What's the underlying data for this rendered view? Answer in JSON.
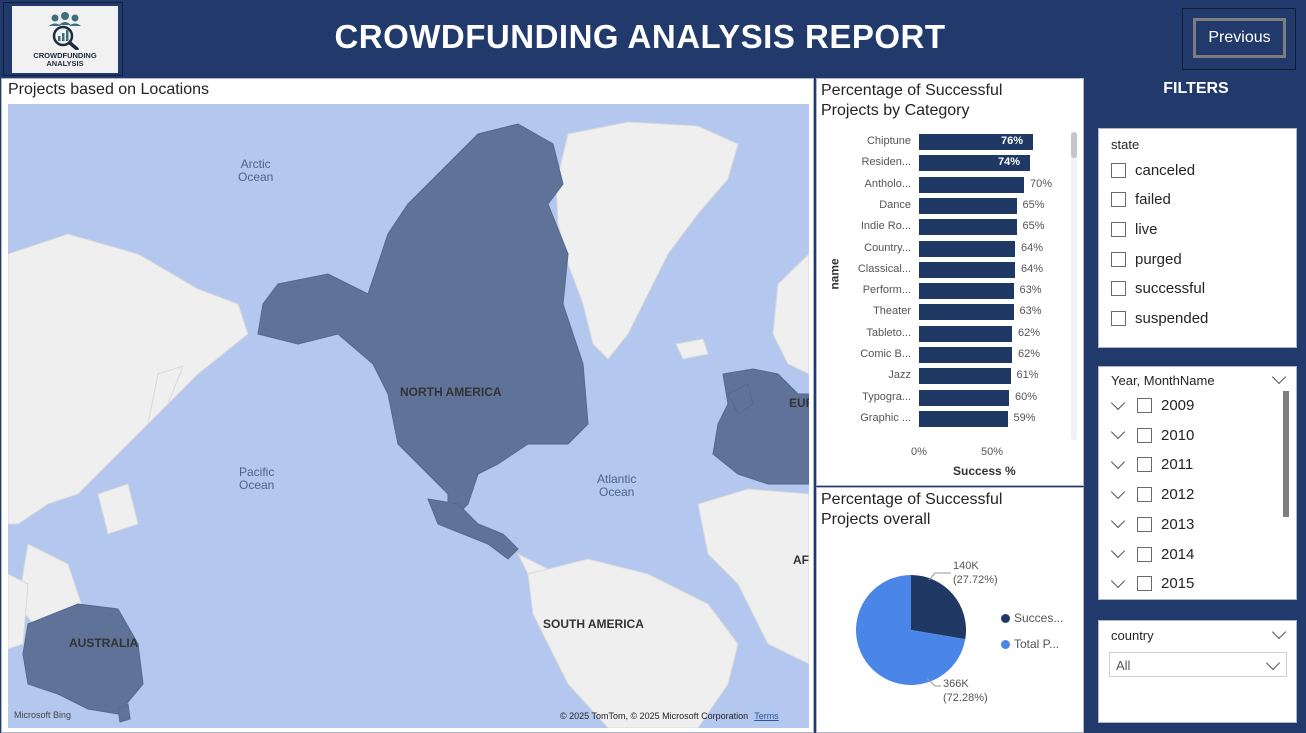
{
  "header": {
    "logo_text_line1": "CROWDFUNDING",
    "logo_text_line2": "ANALYSIS",
    "title": "CROWDFUNDING ANALYSIS REPORT",
    "previous_label": "Previous"
  },
  "map": {
    "title": "Projects based on Locations",
    "labels": {
      "arctic": "Arctic\nOcean",
      "pacific": "Pacific\nOcean",
      "atlantic": "Atlantic\nOcean",
      "north_america": "NORTH AMERICA",
      "south_america": "SOUTH AMERICA",
      "australia": "AUSTRALIA",
      "europe": "EUR",
      "africa": "AFR"
    },
    "bing": "Microsoft Bing",
    "copyright": "© 2025 TomTom, © 2025 Microsoft Corporation",
    "terms": "Terms"
  },
  "category_chart": {
    "title_line1": "Percentage of Successful",
    "title_line2": "Projects by Category",
    "y_title": "name",
    "x_title": "Success %",
    "x_ticks": [
      "0%",
      "50%"
    ]
  },
  "chart_data": [
    {
      "type": "bar",
      "orientation": "horizontal",
      "title": "Percentage of Successful Projects by Category",
      "xlabel": "Success %",
      "ylabel": "name",
      "xlim": [
        0,
        100
      ],
      "categories": [
        "Chiptune",
        "Residen...",
        "Antholo...",
        "Dance",
        "Indie Ro...",
        "Country...",
        "Classical...",
        "Perform...",
        "Theater",
        "Tableto...",
        "Comic B...",
        "Jazz",
        "Typogra...",
        "Graphic ..."
      ],
      "values": [
        76,
        74,
        70,
        65,
        65,
        64,
        64,
        63,
        63,
        62,
        62,
        61,
        60,
        59
      ],
      "value_labels": [
        "76%",
        "74%",
        "70%",
        "65%",
        "65%",
        "64%",
        "64%",
        "63%",
        "63%",
        "62%",
        "62%",
        "61%",
        "60%",
        "59%"
      ],
      "colors": {
        "bar": "#1f3864"
      }
    },
    {
      "type": "pie",
      "title": "Percentage of Successful Projects overall",
      "slices": [
        {
          "name": "Succes...",
          "value": 140000,
          "percent": 27.72,
          "label": "140K",
          "pct_label": "(27.72%)",
          "color": "#1f3864"
        },
        {
          "name": "Total P...",
          "value": 366000,
          "percent": 72.28,
          "label": "366K",
          "pct_label": "(72.28%)",
          "color": "#4a86e8"
        }
      ]
    }
  ],
  "pie_panel": {
    "title_line1": "Percentage of Successful",
    "title_line2": "Projects overall"
  },
  "filters": {
    "title": "FILTERS",
    "state": {
      "title": "state",
      "options": [
        "canceled",
        "failed",
        "live",
        "purged",
        "successful",
        "suspended"
      ]
    },
    "year": {
      "title": "Year, MonthName",
      "options": [
        "2009",
        "2010",
        "2011",
        "2012",
        "2013",
        "2014",
        "2015"
      ]
    },
    "country": {
      "title": "country",
      "value": "All"
    }
  }
}
